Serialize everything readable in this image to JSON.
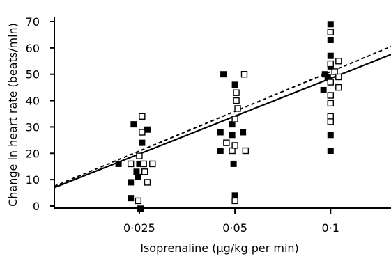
{
  "chart_data": {
    "type": "scatter",
    "title": "",
    "xlabel": "Isoprenaline (µg/kg per min)",
    "ylabel": "Change in heart rate (beats/min)",
    "x_scale": "log",
    "xlim": [
      0.0135,
      0.155
    ],
    "ylim": [
      -3,
      70
    ],
    "x_ticks": [
      0.025,
      0.05,
      0.1
    ],
    "x_tick_labels": [
      "0·025",
      "0·05",
      "0·1"
    ],
    "y_ticks": [
      0,
      10,
      20,
      30,
      40,
      50,
      60,
      70
    ],
    "y_tick_labels": [
      "0",
      "10",
      "20",
      "30",
      "40",
      "50",
      "60",
      "70"
    ],
    "grid": false,
    "series": [
      {
        "marker": "filled-square",
        "points": [
          [
            0.0215,
            16
          ],
          [
            0.0235,
            3
          ],
          [
            0.0235,
            9
          ],
          [
            0.024,
            31
          ],
          [
            0.0245,
            13
          ],
          [
            0.0248,
            11
          ],
          [
            0.025,
            16
          ],
          [
            0.0252,
            -1
          ],
          [
            0.0255,
            24
          ],
          [
            0.0265,
            29
          ],
          [
            0.045,
            21
          ],
          [
            0.045,
            28
          ],
          [
            0.046,
            50
          ],
          [
            0.049,
            27
          ],
          [
            0.049,
            31
          ],
          [
            0.0495,
            16
          ],
          [
            0.05,
            4
          ],
          [
            0.05,
            46
          ],
          [
            0.053,
            28
          ],
          [
            0.095,
            44
          ],
          [
            0.096,
            50
          ],
          [
            0.098,
            49
          ],
          [
            0.1,
            69
          ],
          [
            0.1,
            63
          ],
          [
            0.1,
            57
          ],
          [
            0.1,
            53
          ],
          [
            0.1,
            27
          ],
          [
            0.1,
            21
          ]
        ]
      },
      {
        "marker": "open-square",
        "points": [
          [
            0.0235,
            16
          ],
          [
            0.0248,
            2
          ],
          [
            0.025,
            19
          ],
          [
            0.0255,
            34
          ],
          [
            0.0255,
            28
          ],
          [
            0.0258,
            16
          ],
          [
            0.026,
            13
          ],
          [
            0.0265,
            9
          ],
          [
            0.0275,
            16
          ],
          [
            0.047,
            24
          ],
          [
            0.049,
            21
          ],
          [
            0.05,
            33
          ],
          [
            0.05,
            23
          ],
          [
            0.0505,
            40
          ],
          [
            0.0505,
            43
          ],
          [
            0.051,
            37
          ],
          [
            0.05,
            2
          ],
          [
            0.0535,
            50
          ],
          [
            0.054,
            21
          ],
          [
            0.1,
            66
          ],
          [
            0.1,
            54
          ],
          [
            0.1,
            47
          ],
          [
            0.1,
            42
          ],
          [
            0.1,
            39
          ],
          [
            0.1,
            34
          ],
          [
            0.1,
            32
          ],
          [
            0.103,
            51
          ],
          [
            0.106,
            55
          ],
          [
            0.106,
            49
          ],
          [
            0.106,
            45
          ]
        ]
      }
    ],
    "fit_lines": [
      {
        "style": "solid",
        "x": [
          0.0135,
          0.155
        ],
        "y": [
          7,
          57.5
        ]
      },
      {
        "style": "dashed",
        "x": [
          0.0135,
          0.155
        ],
        "y": [
          7.5,
          60.5
        ]
      }
    ]
  }
}
